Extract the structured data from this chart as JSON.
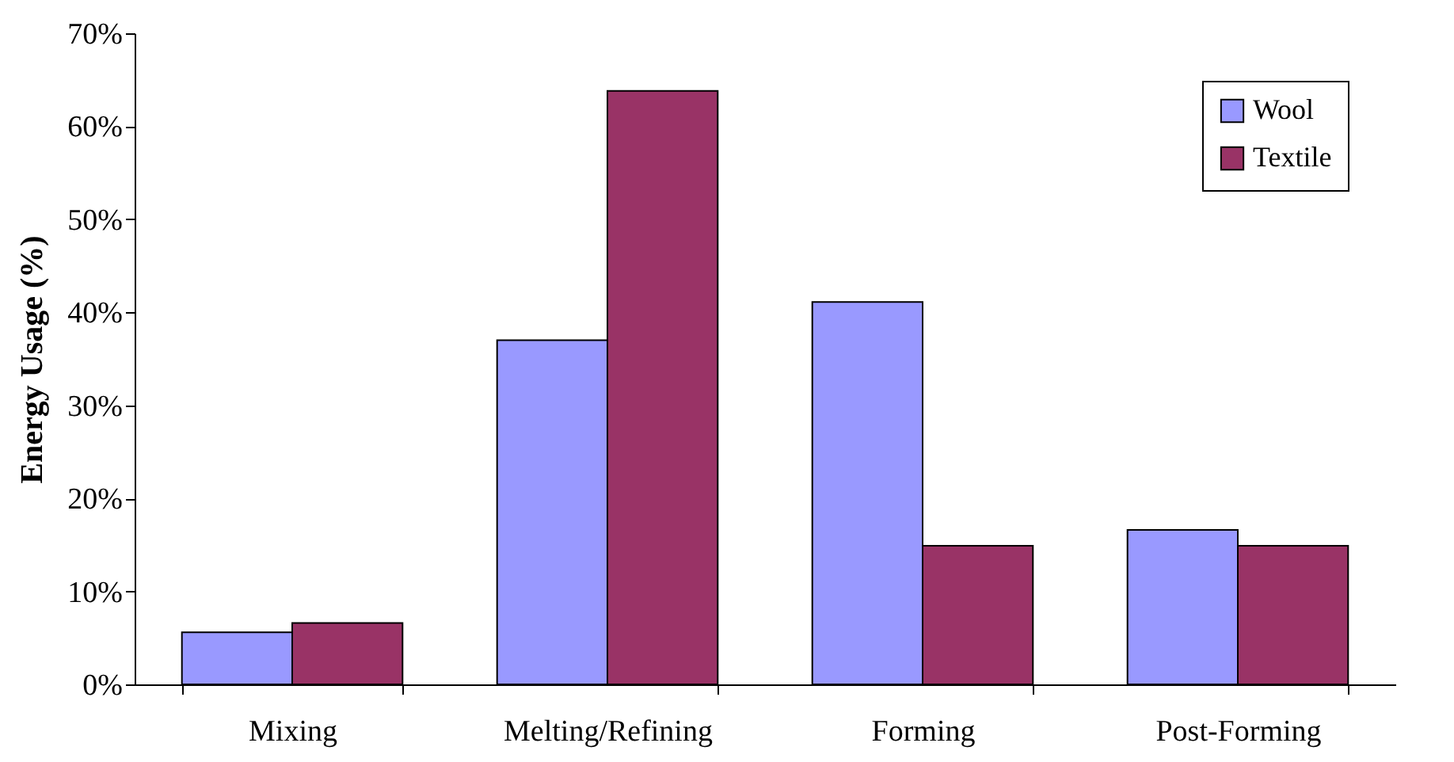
{
  "chart_data": {
    "type": "bar",
    "ylabel": "Energy Usage (%)",
    "categories": [
      "Mixing",
      "Melting/Refining",
      "Forming",
      "Post-Forming"
    ],
    "series": [
      {
        "name": "Wool",
        "color": "#9999ff",
        "values": [
          5.6,
          37,
          41.1,
          16.6
        ]
      },
      {
        "name": "Textile",
        "color": "#993366",
        "values": [
          6.6,
          63.8,
          14.9,
          14.9
        ]
      }
    ],
    "ylim": [
      0,
      70
    ],
    "yticks": [
      {
        "value": 0,
        "label": "0%"
      },
      {
        "value": 10,
        "label": "10%"
      },
      {
        "value": 20,
        "label": "20%"
      },
      {
        "value": 30,
        "label": "30%"
      },
      {
        "value": 40,
        "label": "40%"
      },
      {
        "value": 50,
        "label": "50%"
      },
      {
        "value": 60,
        "label": "60%"
      },
      {
        "value": 70,
        "label": "70%"
      }
    ],
    "grid": false,
    "legend": "top right"
  }
}
